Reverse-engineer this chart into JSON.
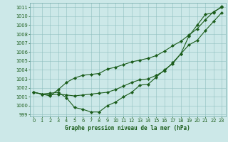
{
  "title": "Graphe pression niveau de la mer (hPa)",
  "bg_color": "#cce8e8",
  "line_color": "#1a5c1a",
  "marker_color": "#1a5c1a",
  "xlim_min": -0.5,
  "xlim_max": 23.5,
  "ylim_min": 998.8,
  "ylim_max": 1011.5,
  "xticks": [
    0,
    1,
    2,
    3,
    4,
    5,
    6,
    7,
    8,
    9,
    10,
    11,
    12,
    13,
    14,
    15,
    16,
    17,
    18,
    19,
    20,
    21,
    22,
    23
  ],
  "yticks": [
    999,
    1000,
    1001,
    1002,
    1003,
    1004,
    1005,
    1006,
    1007,
    1008,
    1009,
    1010,
    1011
  ],
  "series1": [
    1001.5,
    1001.3,
    1001.4,
    1001.5,
    1000.9,
    999.8,
    999.6,
    999.3,
    999.3,
    1000.0,
    1000.4,
    1001.0,
    1001.5,
    1002.3,
    1002.4,
    1003.2,
    1004.0,
    1004.7,
    1005.8,
    1007.8,
    1009.0,
    1010.2,
    1010.4,
    1011.1
  ],
  "series2": [
    1001.5,
    1001.3,
    1001.2,
    1001.3,
    1001.2,
    1001.1,
    1001.2,
    1001.3,
    1001.4,
    1001.5,
    1001.8,
    1002.2,
    1002.6,
    1002.9,
    1003.0,
    1003.4,
    1003.9,
    1004.8,
    1005.8,
    1006.8,
    1007.3,
    1008.4,
    1009.4,
    1010.4
  ],
  "series3": [
    1001.5,
    1001.3,
    1001.1,
    1001.8,
    1002.6,
    1003.1,
    1003.4,
    1003.5,
    1003.6,
    1004.1,
    1004.3,
    1004.6,
    1004.9,
    1005.1,
    1005.3,
    1005.6,
    1006.1,
    1006.7,
    1007.2,
    1007.9,
    1008.6,
    1009.6,
    1010.5,
    1011.0
  ],
  "ylabel_fontsize": 5.0,
  "xlabel_fontsize": 5.5,
  "tick_labelsize": 4.8,
  "linewidth": 0.8,
  "markersize": 2.2
}
